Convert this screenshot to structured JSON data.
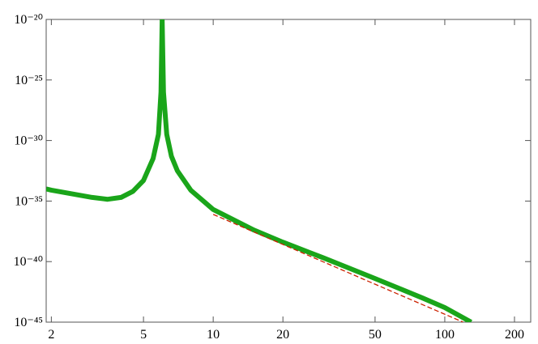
{
  "chart_data": {
    "type": "line",
    "series": [
      {
        "color": "#1aa51a",
        "x": [
          1.9,
          2,
          3,
          3.5,
          4,
          4.5,
          5,
          5.5,
          5.8,
          5.95,
          6.02,
          6.1,
          6.3,
          6.6,
          7,
          8,
          10,
          15,
          20,
          30,
          50,
          80,
          100,
          130
        ],
        "values": [
          1e-34,
          7.9e-35,
          2e-35,
          1.4e-35,
          2e-35,
          6.3e-35,
          5e-34,
          3.2e-32,
          3.2e-30,
          1e-26,
          1e-20,
          1e-26,
          3.2e-30,
          5e-32,
          3.2e-33,
          7.9e-35,
          2e-36,
          4e-38,
          4e-39,
          2e-40,
          4e-42,
          1e-43,
          1.6e-44,
          1e-45
        ]
      },
      {
        "color": "#cc2200",
        "dashed": true,
        "x": [
          10,
          120
        ],
        "values": [
          7.9e-37,
          1e-45
        ]
      }
    ],
    "xlog": true,
    "ylog": true,
    "xlim": [
      1.9,
      235
    ],
    "ylim": [
      1e-45,
      1e-20
    ],
    "xticks": [
      2,
      5,
      10,
      20,
      50,
      100,
      200
    ],
    "yticks": [
      {
        "value": 1e-45,
        "label": "10⁻⁴⁵"
      },
      {
        "value": 1e-40,
        "label": "10⁻⁴⁰"
      },
      {
        "value": 1e-35,
        "label": "10⁻³⁵"
      },
      {
        "value": 1e-30,
        "label": "10⁻³⁰"
      },
      {
        "value": 1e-25,
        "label": "10⁻²⁵"
      },
      {
        "value": 1e-20,
        "label": "10⁻²⁰"
      }
    ]
  }
}
